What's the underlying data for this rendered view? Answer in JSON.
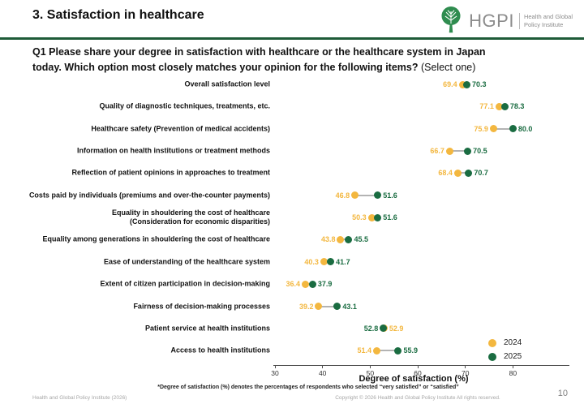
{
  "header": {
    "title": "3. Satisfaction in healthcare",
    "logo": {
      "acronym": "HGPI",
      "name_line1": "Health and Global",
      "name_line2": "Policy Institute"
    }
  },
  "question": {
    "line1": "Q1 Please share your degree in satisfaction with healthcare or the healthcare system in Japan",
    "line2": "today. Which option most closely matches your opinion for the following items?",
    "suffix": "(Select one)"
  },
  "chart_data": {
    "type": "scatter",
    "subtype": "dumbbell-dot-plot",
    "categories": [
      "Overall satisfaction level",
      "Quality of diagnostic techniques, treatments, etc.",
      "Healthcare safety (Prevention of medical accidents)",
      "Information on health institutions or treatment methods",
      "Reflection of patient opinions in approaches to treatment",
      "Costs paid by individuals (premiums and over-the-counter payments)",
      "Equality in shouldering the cost of healthcare\n(Consideration for economic disparities)",
      "Equality among generations in shouldering the cost of healthcare",
      "Ease of understanding of the healthcare system",
      "Extent of citizen participation in decision-making",
      "Fairness of decision-making processes",
      "Patient service at health institutions",
      "Access to health institutions"
    ],
    "series": [
      {
        "name": "2024",
        "color": "#F3B73F",
        "values": [
          69.4,
          77.1,
          75.9,
          66.7,
          68.4,
          46.8,
          50.3,
          43.8,
          40.3,
          36.4,
          39.2,
          52.9,
          51.4
        ]
      },
      {
        "name": "2025",
        "color": "#1A6C41",
        "values": [
          70.3,
          78.3,
          80.0,
          70.5,
          70.7,
          51.6,
          51.6,
          45.5,
          41.7,
          37.9,
          43.1,
          52.8,
          55.9
        ]
      }
    ],
    "xlabel": "Degree of satisfaction (%)",
    "xticks": [
      30,
      40,
      50,
      60,
      70,
      80
    ],
    "xlim": [
      30,
      91.5
    ],
    "grid": false,
    "legend_position": "lower right",
    "connector_color": "#B3B3B3"
  },
  "footnote": "*Degree of satisfaction (%) denotes  the percentages of respondents who selected “very satisfied” or “satisfied”",
  "footer": {
    "left": "Health and Global Policy Institute (2026)",
    "copyright": "Copyright © 2026 Health and Global Policy Institute  All rights reserved.",
    "page": "10"
  }
}
